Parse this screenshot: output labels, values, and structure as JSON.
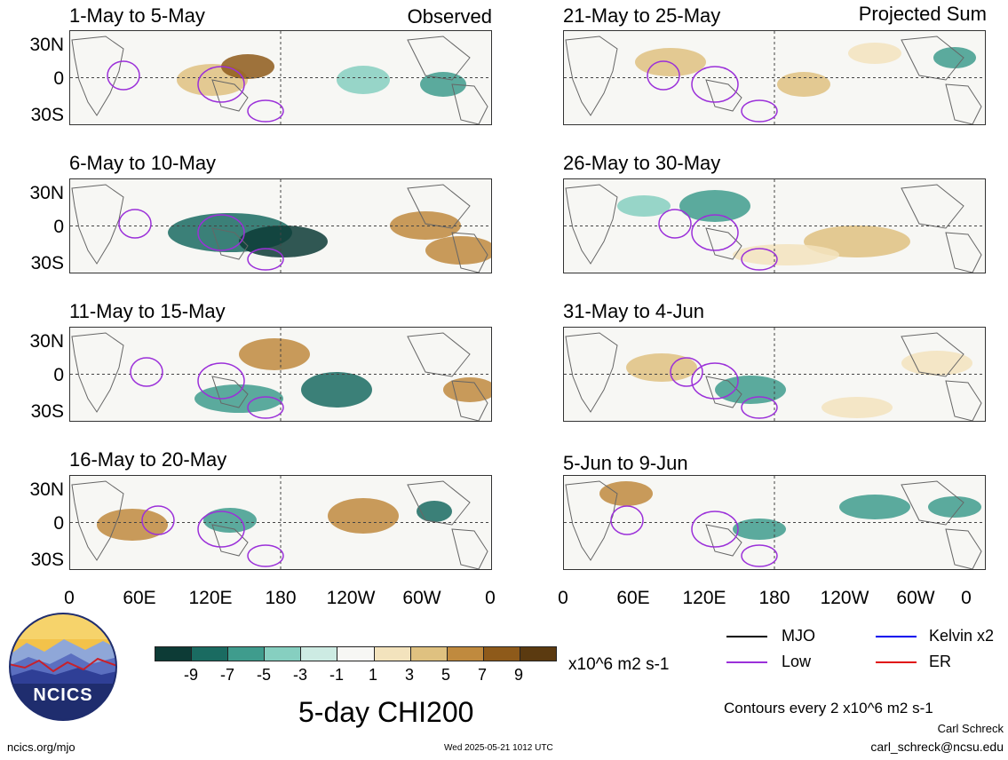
{
  "header": {
    "observed_label": "Observed",
    "projected_label": "Projected Sum"
  },
  "panels_left": [
    {
      "title": "1-May to 5-May"
    },
    {
      "title": "6-May to 10-May"
    },
    {
      "title": "11-May to 15-May"
    },
    {
      "title": "16-May to 20-May"
    }
  ],
  "panels_right": [
    {
      "title": "21-May to 25-May"
    },
    {
      "title": "26-May to 30-May"
    },
    {
      "title": "31-May to 4-Jun"
    },
    {
      "title": "5-Jun to 9-Jun"
    }
  ],
  "axes": {
    "lat_labels": [
      "30N",
      "0",
      "30S"
    ],
    "lon_labels": [
      "0",
      "60E",
      "120E",
      "180",
      "120W",
      "60W",
      "0"
    ]
  },
  "colorbar": {
    "ticks": [
      "-9",
      "-7",
      "-5",
      "-3",
      "-1",
      "1",
      "3",
      "5",
      "7",
      "9"
    ],
    "units": "x10^6 m2 s-1",
    "colors": [
      "#0d3b36",
      "#1a6b61",
      "#3f9c8d",
      "#86cfc0",
      "#cdebe3",
      "#f7f7f4",
      "#f3e3bd",
      "#dfc180",
      "#c08a3e",
      "#8e5a1a",
      "#5b3a10"
    ]
  },
  "legend": {
    "items": [
      {
        "label": "MJO",
        "color": "#000000"
      },
      {
        "label": "Kelvin x2",
        "color": "#0000ee"
      },
      {
        "label": "Low",
        "color": "#9b30d9"
      },
      {
        "label": "ER",
        "color": "#e01010"
      }
    ],
    "contours_note": "Contours every 2 x10^6 m2 s-1"
  },
  "main_title": "5-day CHI200",
  "logo_text": "NCICS",
  "footer": {
    "site": "ncics.org/mjo",
    "timestamp": "Wed 2025-05-21 1012 UTC",
    "author": "Carl Schreck",
    "email": "carl_schreck@ncsu.edu"
  }
}
